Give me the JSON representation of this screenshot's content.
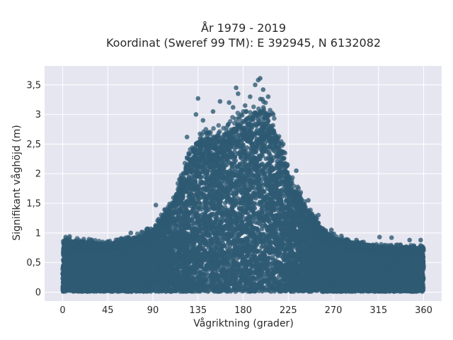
{
  "chart_data": {
    "type": "scatter",
    "title": "År 1979 - 2019",
    "subtitle": "Koordinat (Sweref 99 TM): E 392945, N 6132082",
    "xlabel": "Vågriktning (grader)",
    "ylabel": "Signifikant våghöjd (m)",
    "xlim": [
      -18,
      378
    ],
    "ylim": [
      -0.15,
      3.82
    ],
    "xticks": [
      0,
      45,
      90,
      135,
      180,
      225,
      270,
      315,
      360
    ],
    "yticks": [
      0,
      0.5,
      1,
      1.5,
      2,
      2.5,
      3,
      3.5
    ],
    "ytick_labels": [
      "0",
      "0,5",
      "1",
      "1,5",
      "2",
      "2,5",
      "3",
      "3,5"
    ],
    "grid": true,
    "point_color": "#2e5a73",
    "plot_background": "#e6e6f0",
    "envelope": {
      "x": [
        0,
        20,
        45,
        70,
        90,
        110,
        125,
        135,
        150,
        165,
        180,
        195,
        205,
        215,
        225,
        240,
        260,
        280,
        300,
        320,
        340,
        360
      ],
      "y": [
        0.85,
        0.85,
        0.8,
        0.9,
        1.05,
        1.5,
        2.2,
        2.6,
        2.6,
        2.7,
        2.9,
        3.1,
        3.0,
        2.6,
        2.0,
        1.5,
        1.0,
        0.85,
        0.8,
        0.75,
        0.75,
        0.75
      ]
    },
    "outliers": [
      {
        "x": 3,
        "y": 0.93
      },
      {
        "x": 7,
        "y": 0.94
      },
      {
        "x": 25,
        "y": 0.85
      },
      {
        "x": 47,
        "y": 0.82
      },
      {
        "x": 68,
        "y": 1.0
      },
      {
        "x": 85,
        "y": 1.07
      },
      {
        "x": 93,
        "y": 1.47
      },
      {
        "x": 124,
        "y": 2.62
      },
      {
        "x": 133,
        "y": 3.0
      },
      {
        "x": 135,
        "y": 3.27
      },
      {
        "x": 140,
        "y": 2.9
      },
      {
        "x": 150,
        "y": 3.05
      },
      {
        "x": 157,
        "y": 3.22
      },
      {
        "x": 166,
        "y": 3.2
      },
      {
        "x": 170,
        "y": 3.12
      },
      {
        "x": 173,
        "y": 3.45
      },
      {
        "x": 175,
        "y": 3.35
      },
      {
        "x": 182,
        "y": 3.15
      },
      {
        "x": 187,
        "y": 3.3
      },
      {
        "x": 192,
        "y": 3.5
      },
      {
        "x": 195,
        "y": 3.58
      },
      {
        "x": 197,
        "y": 3.61
      },
      {
        "x": 200,
        "y": 3.42
      },
      {
        "x": 205,
        "y": 3.3
      },
      {
        "x": 210,
        "y": 3.0
      },
      {
        "x": 220,
        "y": 2.5
      },
      {
        "x": 233,
        "y": 2.05
      },
      {
        "x": 245,
        "y": 1.55
      },
      {
        "x": 255,
        "y": 1.3
      },
      {
        "x": 268,
        "y": 1.05
      },
      {
        "x": 278,
        "y": 0.95
      },
      {
        "x": 293,
        "y": 0.88
      },
      {
        "x": 316,
        "y": 0.93
      },
      {
        "x": 328,
        "y": 0.92
      },
      {
        "x": 346,
        "y": 0.88
      },
      {
        "x": 357,
        "y": 0.88
      }
    ]
  }
}
